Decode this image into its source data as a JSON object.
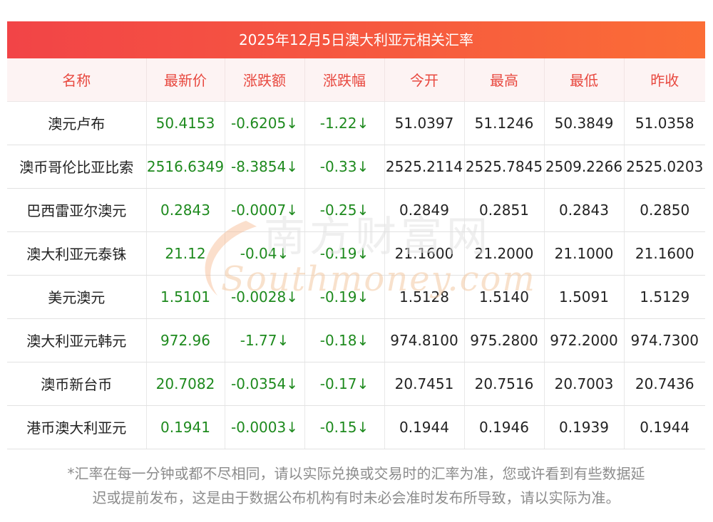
{
  "title": "2025年12月5日澳大利亚元相关汇率",
  "columns": [
    "名称",
    "最新价",
    "涨跌额",
    "涨跌幅",
    "今开",
    "最高",
    "最低",
    "昨收"
  ],
  "rows": [
    [
      "澳元卢布",
      "50.4153",
      "-0.6205↓",
      "-1.22↓",
      "51.0397",
      "51.1246",
      "50.3849",
      "51.0358"
    ],
    [
      "澳币哥伦比亚比索",
      "2516.6349",
      "-8.3854↓",
      "-0.33↓",
      "2525.2114",
      "2525.7845",
      "2509.2266",
      "2525.0203"
    ],
    [
      "巴西雷亚尔澳元",
      "0.2843",
      "-0.0007↓",
      "-0.25↓",
      "0.2849",
      "0.2851",
      "0.2843",
      "0.2850"
    ],
    [
      "澳大利亚元泰铢",
      "21.12",
      "-0.04↓",
      "-0.19↓",
      "21.1600",
      "21.2000",
      "21.1000",
      "21.1600"
    ],
    [
      "美元澳元",
      "1.5101",
      "-0.0028↓",
      "-0.19↓",
      "1.5128",
      "1.5140",
      "1.5091",
      "1.5129"
    ],
    [
      "澳大利亚元韩元",
      "972.96",
      "-1.77↓",
      "-0.18↓",
      "974.8100",
      "975.2800",
      "972.2000",
      "974.7300"
    ],
    [
      "澳币新台币",
      "20.7082",
      "-0.0354↓",
      "-0.17↓",
      "20.7451",
      "20.7516",
      "20.7003",
      "20.7436"
    ],
    [
      "港币澳大利亚元",
      "0.1941",
      "-0.0003↓",
      "-0.15↓",
      "0.1944",
      "0.1946",
      "0.1939",
      "0.1944"
    ]
  ],
  "watermark": {
    "cn": "南方财富网",
    "en": "Southmoney.com"
  },
  "footnote": {
    "line1": "*汇率在每一分钟或都不尽相同，请以实际兑换或交易时的汇率为准，您或许看到有些数据延",
    "line2": "迟或提前发布，这是由于数据公布机构有时未必会准时发布所导致，请以实际为准。"
  },
  "colors": {
    "banner": "#f24447",
    "header_text": "#e8483f",
    "header_bg": "#fdf3f3",
    "down": "#1e8a1e"
  }
}
